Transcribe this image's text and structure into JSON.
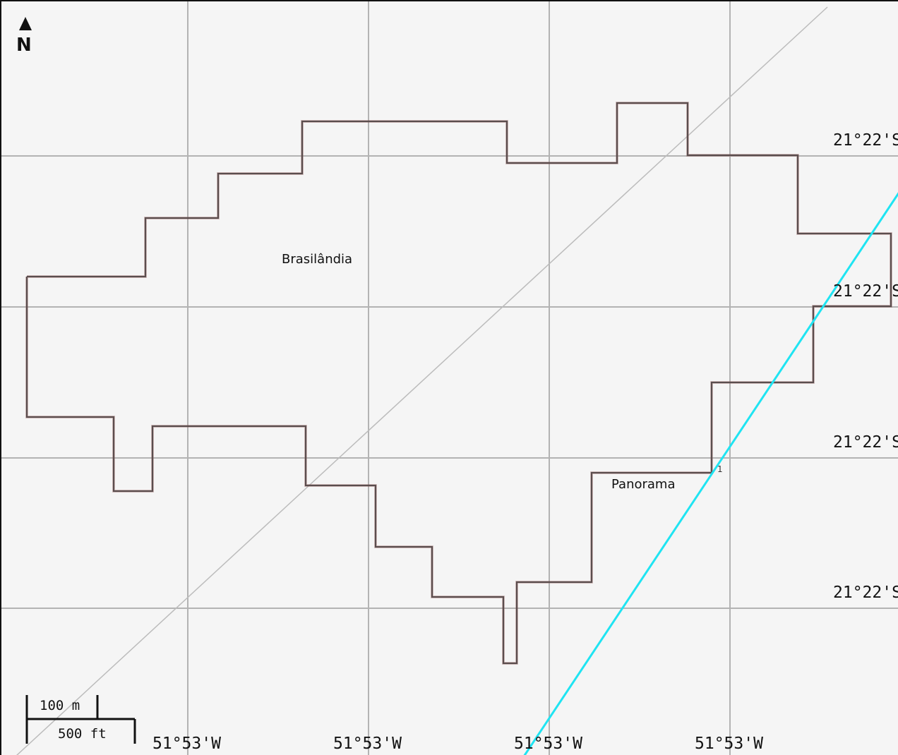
{
  "map": {
    "north_arrow": {
      "letter": "N",
      "icon": "north-arrow-icon"
    },
    "latitude_labels": [
      "21°22'S",
      "21°22'S",
      "21°22'S",
      "21°22'S"
    ],
    "longitude_labels": [
      "51°53'W",
      "51°53'W",
      "51°53'W",
      "51°53'W"
    ],
    "places": {
      "brasilandia": "Brasilândia",
      "panorama": "Panorama"
    },
    "route_marker": "1",
    "scale_bar": {
      "metric": "100 m",
      "imperial": "500 ft"
    },
    "colors": {
      "background": "#f5f5f5",
      "grid": "#b3b3b3",
      "boundary": "#8a5a5a",
      "boundary_inner": "#555555",
      "road": "#1fe4f2",
      "diagonal": "#bcbcbc"
    }
  }
}
